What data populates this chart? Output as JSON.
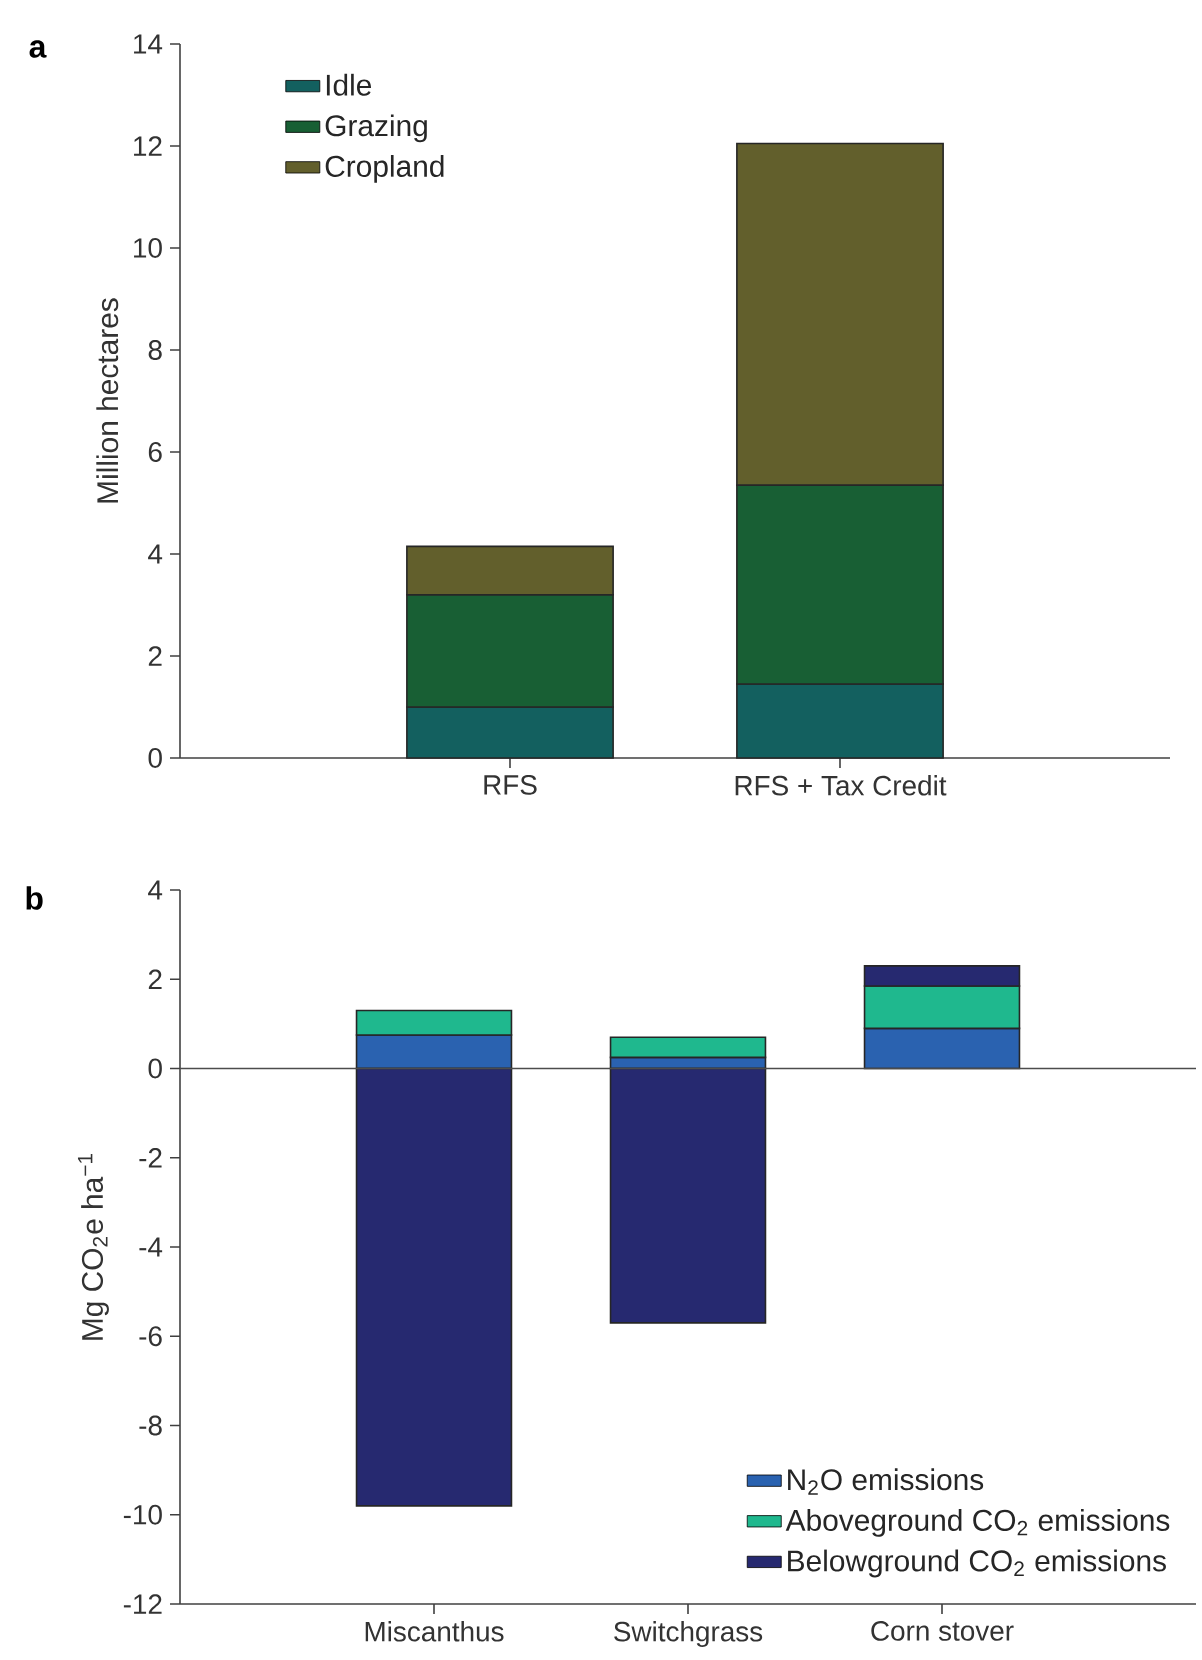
{
  "chart_data": [
    {
      "type": "bar",
      "stacked": true,
      "categories": [
        "RFS",
        "RFS + Tax Credit"
      ],
      "ylabel": "Million hectares",
      "ylim": [
        0,
        14
      ],
      "yticks": [
        0,
        2,
        4,
        6,
        8,
        10,
        12,
        14
      ],
      "legend": "top left",
      "annotations": [
        "a"
      ],
      "series": [
        {
          "name": "Idle",
          "color": "#13605f",
          "values": [
            1.0,
            1.45
          ]
        },
        {
          "name": "Grazing",
          "color": "#185f34",
          "values": [
            2.2,
            3.9
          ]
        },
        {
          "name": "Cropland",
          "color": "#625f2c",
          "values": [
            0.95,
            6.7
          ]
        }
      ]
    },
    {
      "type": "bar",
      "stacked": true,
      "categories": [
        "Miscanthus",
        "Switchgrass",
        "Corn stover"
      ],
      "ylabel": "Mg CO$_{2}$e ha$^{−1}$",
      "ylim": [
        -12,
        4
      ],
      "yticks": [
        -12,
        -10,
        -8,
        -6,
        -4,
        -2,
        0,
        2,
        4
      ],
      "legend": "bottom right",
      "annotations": [
        "b"
      ],
      "ref_lines": [
        {
          "axis": "y",
          "value": 0
        }
      ],
      "series": [
        {
          "name": "N$_{2}$O emissions",
          "color": "#2a62b0",
          "values": [
            0.75,
            0.25,
            0.9
          ]
        },
        {
          "name": "Aboveground CO$_{2}$ emissions",
          "color": "#1fb88e",
          "values": [
            0.55,
            0.45,
            0.95
          ]
        },
        {
          "name": "Belowground CO$_{2}$ emissions",
          "color": "#262970",
          "values": [
            -9.8,
            -5.7,
            0.45
          ]
        }
      ]
    }
  ]
}
